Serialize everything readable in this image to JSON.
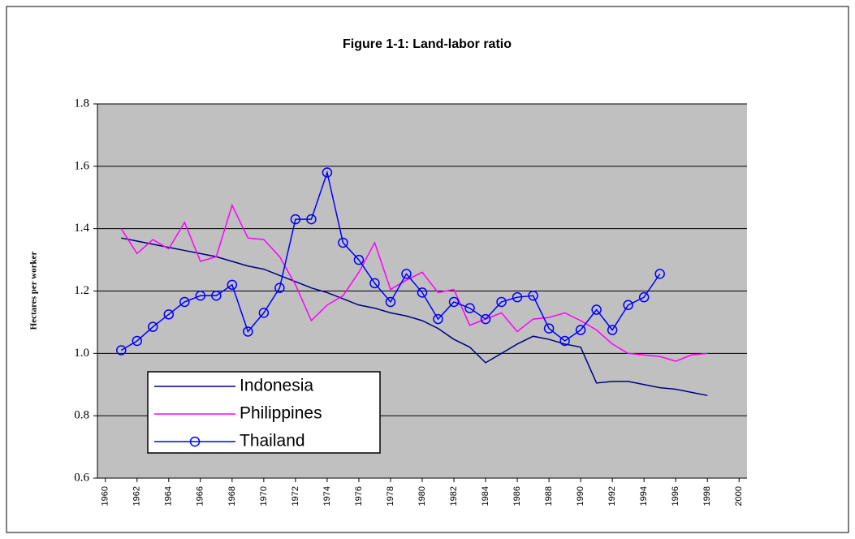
{
  "chart_data": {
    "type": "line",
    "title": "Figure 1-1: Land-labor ratio",
    "y_label": "Hectares per worker",
    "x": [
      1961,
      1962,
      1963,
      1964,
      1965,
      1966,
      1967,
      1968,
      1969,
      1970,
      1971,
      1972,
      1973,
      1974,
      1975,
      1976,
      1977,
      1978,
      1979,
      1980,
      1981,
      1982,
      1983,
      1984,
      1985,
      1986,
      1987,
      1988,
      1989,
      1990,
      1991,
      1992,
      1993,
      1994,
      1995,
      1996,
      1997,
      1998
    ],
    "series": [
      {
        "name": "Indonesia",
        "color": "#000080",
        "marker": false,
        "values": [
          1.37,
          1.36,
          1.35,
          1.34,
          1.33,
          1.32,
          1.31,
          1.295,
          1.28,
          1.27,
          1.25,
          1.23,
          1.21,
          1.195,
          1.175,
          1.155,
          1.145,
          1.13,
          1.12,
          1.105,
          1.08,
          1.045,
          1.02,
          0.97,
          1.0,
          1.03,
          1.055,
          1.045,
          1.03,
          1.02,
          0.905,
          0.91,
          0.91,
          0.9,
          0.89,
          0.885,
          0.875,
          0.865
        ]
      },
      {
        "name": "Philippines",
        "color": "#ff00ff",
        "marker": false,
        "values": [
          1.4,
          1.32,
          1.365,
          1.335,
          1.42,
          1.295,
          1.31,
          1.475,
          1.37,
          1.365,
          1.31,
          1.22,
          1.105,
          1.155,
          1.185,
          1.26,
          1.355,
          1.205,
          1.235,
          1.26,
          1.195,
          1.205,
          1.09,
          1.11,
          1.13,
          1.07,
          1.11,
          1.115,
          1.13,
          1.105,
          1.075,
          1.03,
          1.0,
          0.995,
          0.99,
          0.975,
          0.995,
          1.0
        ]
      },
      {
        "name": "Thailand",
        "color": "#0000ff",
        "marker": true,
        "values": [
          1.01,
          1.04,
          1.085,
          1.125,
          1.165,
          1.185,
          1.185,
          1.22,
          1.07,
          1.13,
          1.21,
          1.43,
          1.43,
          1.58,
          1.355,
          1.3,
          1.225,
          1.165,
          1.255,
          1.195,
          1.11,
          1.165,
          1.145,
          1.11,
          1.165,
          1.18,
          1.185,
          1.08,
          1.04,
          1.075,
          1.14,
          1.075,
          1.155,
          1.18,
          1.255,
          null,
          null,
          null
        ]
      }
    ],
    "xlim": [
      1959.5,
      2000.5
    ],
    "xticks": [
      1960,
      1962,
      1964,
      1966,
      1968,
      1970,
      1972,
      1974,
      1976,
      1978,
      1980,
      1982,
      1984,
      1986,
      1988,
      1990,
      1992,
      1994,
      1996,
      1998,
      2000
    ],
    "ylim": [
      0.6,
      1.8
    ],
    "yticks": [
      0.6,
      0.8,
      {
        "value": 1,
        "label": "1.0"
      },
      1.2,
      1.4,
      1.6,
      1.8
    ],
    "grid": true
  }
}
